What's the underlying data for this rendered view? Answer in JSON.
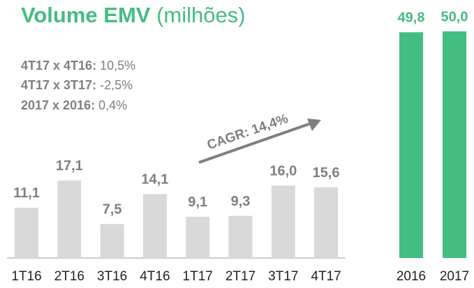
{
  "chart_data": [
    {
      "type": "bar",
      "title": "Volume EMV",
      "subtitle": "(milhões)",
      "annotations": [
        {
          "label": "4T17 x 4T16:",
          "value": "10,5%"
        },
        {
          "label": "4T17 x 3T17:",
          "value": "-2,5%"
        },
        {
          "label": "2017 x 2016:",
          "value": "0,4%"
        }
      ],
      "trend_label": "CAGR: 14,4%",
      "categories": [
        "1T16",
        "2T16",
        "3T16",
        "4T16",
        "1T17",
        "2T17",
        "3T17",
        "4T17"
      ],
      "values": [
        11.1,
        17.1,
        7.5,
        14.1,
        9.1,
        9.3,
        16.0,
        15.6
      ],
      "value_labels": [
        "11,1",
        "17,1",
        "7,5",
        "14,1",
        "9,1",
        "9,3",
        "16,0",
        "15,6"
      ],
      "color": "#d9d9d9",
      "label_color": "#7f7f7f",
      "ylim": [
        0,
        55
      ]
    },
    {
      "type": "bar",
      "categories": [
        "2016",
        "2017"
      ],
      "values": [
        49.8,
        50.0
      ],
      "value_labels": [
        "49,8",
        "50,0"
      ],
      "color": "#45bd82",
      "label_color": "#45bd82",
      "ylim": [
        0,
        55
      ]
    }
  ]
}
